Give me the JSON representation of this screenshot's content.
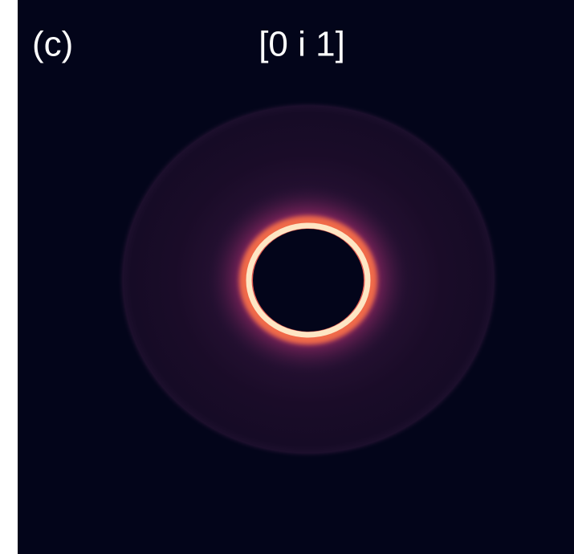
{
  "panel_label": "(c)",
  "title": "[0 i 1]"
}
